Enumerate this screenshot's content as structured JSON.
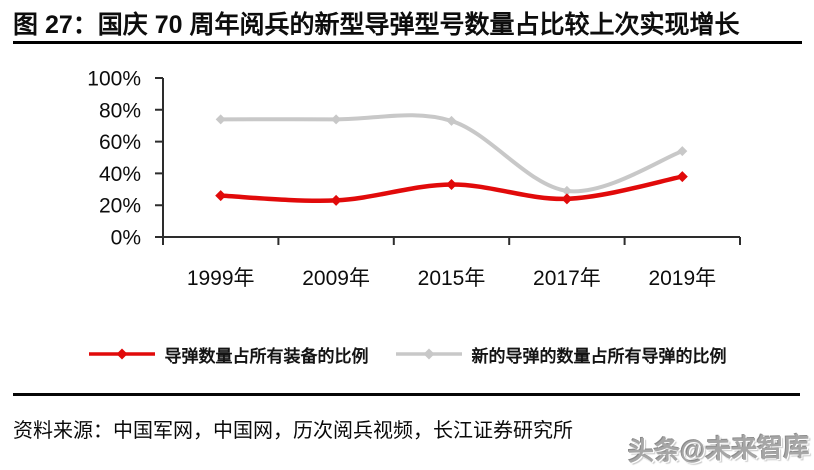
{
  "figure": {
    "title": "图 27：国庆 70 周年阅兵的新型导弹型号数量占比较上次实现增长",
    "source": "资料来源：中国军网，中国网，历次阅兵视频，长江证券研究所",
    "watermark": "头条@未来智库"
  },
  "chart_data": {
    "type": "line",
    "title": "国庆 70 周年阅兵的新型导弹型号数量占比较上次实现增长",
    "categories": [
      "1999年",
      "2009年",
      "2015年",
      "2017年",
      "2019年"
    ],
    "series": [
      {
        "name": "导弹数量占所有装备的比例",
        "color": "#e10a0a",
        "values": [
          26,
          23,
          33,
          24,
          38
        ]
      },
      {
        "name": "新的导弹的数量占所有导弹的比例",
        "color": "#c8c8c8",
        "values": [
          74,
          74,
          73,
          29,
          54
        ]
      }
    ],
    "xlabel": "",
    "ylabel": "",
    "ylim": [
      0,
      100
    ],
    "yticks": [
      "0%",
      "20%",
      "40%",
      "60%",
      "80%",
      "100%"
    ],
    "grid": false,
    "legend_position": "bottom",
    "line_style": "smooth",
    "marker": "diamond",
    "axis_color": "#2d2d2d"
  }
}
